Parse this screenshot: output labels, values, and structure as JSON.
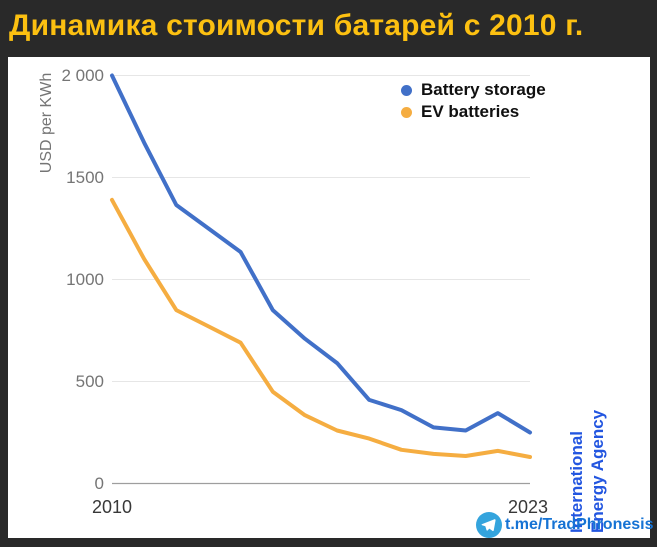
{
  "title": "Динамика стоимости батарей с 2010 г.",
  "title_color": "#fcc011",
  "background_color": "#292929",
  "panel_color": "#ffffff",
  "chart_data": {
    "type": "line",
    "title": "Динамика стоимости батарей с 2010 г.",
    "xlabel": "",
    "ylabel": "USD per KWh",
    "x": [
      2010,
      2011,
      2012,
      2013,
      2014,
      2015,
      2016,
      2017,
      2018,
      2019,
      2020,
      2021,
      2022,
      2023
    ],
    "series": [
      {
        "name": "Battery storage",
        "color": "#4170c8",
        "values": [
          2000,
          1670,
          1365,
          1250,
          1135,
          850,
          710,
          590,
          410,
          360,
          275,
          260,
          345,
          250
        ]
      },
      {
        "name": "EV batteries",
        "color": "#f5ad41",
        "values": [
          1390,
          1100,
          850,
          770,
          690,
          450,
          335,
          260,
          220,
          165,
          145,
          135,
          160,
          130
        ]
      }
    ],
    "ylim": [
      0,
      2000
    ],
    "yticks": [
      {
        "label": "0",
        "value": 0
      },
      {
        "label": "500",
        "value": 500
      },
      {
        "label": "1000",
        "value": 1000
      },
      {
        "label": "1500",
        "value": 1500
      },
      {
        "label": "2 000",
        "value": 2000
      }
    ],
    "xticks_shown": [
      {
        "label": "2010",
        "value": 2010
      },
      {
        "label": "2023",
        "value": 2023
      }
    ],
    "grid": true,
    "gridline_color": "#e6e6e6",
    "baseline_color": "#9e9e9e",
    "legend_position": "top-right"
  },
  "watermark": {
    "line1": "International",
    "line2": "Energy Agency",
    "color": "#2356e0"
  },
  "footer": {
    "handle": "t.me/TradPhronesis",
    "icon": "telegram-icon",
    "icon_color": "#34a4dd"
  }
}
